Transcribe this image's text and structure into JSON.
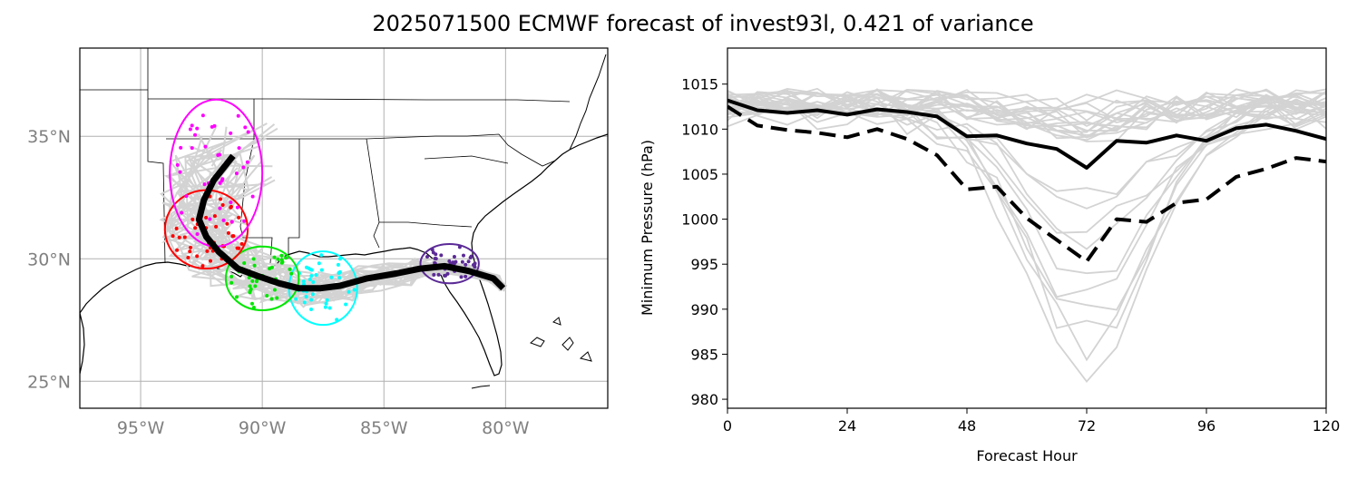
{
  "title": "2025071500 ECMWF forecast of invest93l, 0.421 of variance",
  "chart_data": [
    {
      "type": "map",
      "lon_range": [
        -97.5,
        -75.8
      ],
      "lat_range": [
        23.9,
        38.6
      ],
      "lon_ticks": [
        -95,
        -90,
        -85,
        -80
      ],
      "lon_tick_labels": [
        "95°W",
        "90°W",
        "85°W",
        "80°W"
      ],
      "lat_ticks": [
        25,
        30,
        35
      ],
      "lat_tick_labels": [
        "25°N",
        "30°N",
        "35°N"
      ],
      "grid": true,
      "ensemble_mean_track": [
        [
          -80.1,
          28.8
        ],
        [
          -80.5,
          29.2
        ],
        [
          -81.5,
          29.5
        ],
        [
          -82.5,
          29.7
        ],
        [
          -83.5,
          29.6
        ],
        [
          -84.5,
          29.4
        ],
        [
          -85.7,
          29.2
        ],
        [
          -86.8,
          28.9
        ],
        [
          -87.6,
          28.8
        ],
        [
          -88.5,
          28.8
        ],
        [
          -89.3,
          29.0
        ],
        [
          -90.2,
          29.3
        ],
        [
          -91.0,
          29.6
        ],
        [
          -91.8,
          30.3
        ],
        [
          -92.3,
          30.9
        ],
        [
          -92.6,
          31.6
        ],
        [
          -92.4,
          32.4
        ],
        [
          -92.0,
          33.2
        ],
        [
          -91.2,
          34.2
        ]
      ],
      "uncertainty_ellipses": [
        {
          "color": "#5b2a96",
          "center": [
            -82.3,
            29.8
          ],
          "half_width": 1.2,
          "half_height": 0.8
        },
        {
          "color": "#00ffff",
          "center": [
            -87.5,
            28.8
          ],
          "half_width": 1.4,
          "half_height": 1.5
        },
        {
          "color": "#00e600",
          "center": [
            -90.0,
            29.2
          ],
          "half_width": 1.5,
          "half_height": 1.3
        },
        {
          "color": "#ff0000",
          "center": [
            -92.3,
            31.2
          ],
          "half_width": 1.7,
          "half_height": 1.6
        },
        {
          "color": "#ff00ff",
          "center": [
            -91.9,
            33.5
          ],
          "half_width": 1.9,
          "half_height": 3.0
        }
      ]
    },
    {
      "type": "line",
      "xlabel": "Forecast Hour",
      "ylabel": "Minimum Pressure (hPa)",
      "xlim": [
        0,
        120
      ],
      "ylim": [
        979,
        1019
      ],
      "xticks": [
        0,
        24,
        48,
        72,
        96,
        120
      ],
      "yticks": [
        980,
        985,
        990,
        995,
        1000,
        1005,
        1010,
        1015
      ],
      "x": [
        0,
        6,
        12,
        18,
        24,
        30,
        36,
        42,
        48,
        54,
        60,
        66,
        72,
        78,
        84,
        90,
        96,
        102,
        108,
        114,
        120
      ],
      "series": [
        {
          "style": "solid",
          "color": "#000000",
          "values": [
            1013.2,
            1012.1,
            1011.8,
            1012.1,
            1011.6,
            1012.2,
            1011.9,
            1011.4,
            1009.2,
            1009.3,
            1008.4,
            1007.8,
            1005.7,
            1008.7,
            1008.5,
            1009.3,
            1008.7,
            1010.1,
            1010.5,
            1009.8,
            1008.9
          ]
        },
        {
          "style": "dashed",
          "color": "#000000",
          "values": [
            1012.5,
            1010.4,
            1009.9,
            1009.6,
            1009.1,
            1010.0,
            1008.9,
            1007.1,
            1003.3,
            1003.6,
            1000.1,
            997.7,
            995.3,
            1000.0,
            999.7,
            1001.8,
            1002.2,
            1004.7,
            1005.6,
            1006.8,
            1006.4
          ]
        }
      ],
      "members_color": "#d3d3d3"
    }
  ]
}
